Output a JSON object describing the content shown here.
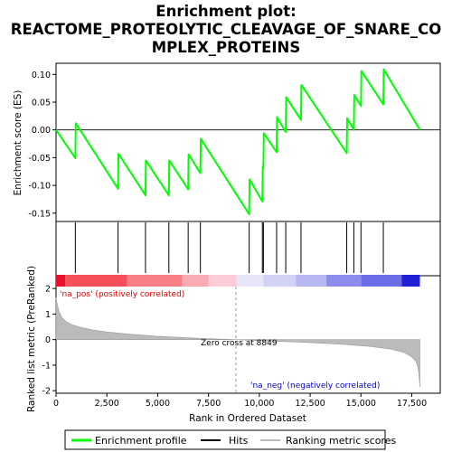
{
  "chart_data": {
    "type": "line",
    "title_lines": [
      "Enrichment plot:",
      "REACTOME_PROTEOLYTIC_CLEAVAGE_OF_SNARE_CO",
      "MPLEX_PROTEINS"
    ],
    "top_panel": {
      "ylabel": "Enrichment score (ES)",
      "ylim": [
        -0.165,
        0.12
      ],
      "yticks": [
        "0.10",
        "0.05",
        "0.00",
        "-0.05",
        "-0.10",
        "-0.15"
      ],
      "ytick_values": [
        0.1,
        0.05,
        0.0,
        -0.05,
        -0.1,
        -0.15
      ],
      "series": [
        {
          "name": "Enrichment profile",
          "color": "#00ff00",
          "x": [
            0,
            950,
            970,
            3050,
            3070,
            4400,
            4420,
            5550,
            5570,
            6500,
            6520,
            7100,
            7120,
            9500,
            9520,
            10150,
            10170,
            10200,
            10220,
            10850,
            10870,
            11300,
            11320,
            12050,
            12070,
            14300,
            14320,
            14650,
            14670,
            15000,
            15020,
            16100,
            16120,
            17900
          ],
          "y": [
            0.0,
            -0.051,
            0.012,
            -0.106,
            -0.043,
            -0.118,
            -0.055,
            -0.118,
            -0.055,
            -0.107,
            -0.044,
            -0.078,
            -0.016,
            -0.152,
            -0.089,
            -0.129,
            -0.066,
            -0.069,
            -0.006,
            -0.04,
            0.023,
            -0.004,
            0.059,
            0.018,
            0.081,
            -0.042,
            0.021,
            0.0,
            0.063,
            0.043,
            0.106,
            0.046,
            0.109,
            0.0
          ]
        }
      ]
    },
    "hits": {
      "name": "Hits",
      "x": [
        950,
        3050,
        4400,
        5550,
        6500,
        7100,
        9500,
        10150,
        10200,
        10850,
        11300,
        12050,
        14300,
        14650,
        15000,
        16100
      ]
    },
    "color_bar": {
      "x_range": [
        0,
        17900
      ],
      "segments": [
        {
          "start": 0,
          "end": 450,
          "color": "#e8102a"
        },
        {
          "start": 450,
          "end": 3500,
          "color": "#f5505a"
        },
        {
          "start": 3500,
          "end": 6200,
          "color": "#f87f86"
        },
        {
          "start": 6200,
          "end": 7500,
          "color": "#faaab2"
        },
        {
          "start": 7500,
          "end": 8849,
          "color": "#fcccd8"
        },
        {
          "start": 8849,
          "end": 10200,
          "color": "#e6e6f8"
        },
        {
          "start": 10200,
          "end": 11800,
          "color": "#d2d2f6"
        },
        {
          "start": 11800,
          "end": 13300,
          "color": "#b7b7f2"
        },
        {
          "start": 13300,
          "end": 15000,
          "color": "#8c8cec"
        },
        {
          "start": 15000,
          "end": 17000,
          "color": "#6c6ce8"
        },
        {
          "start": 17000,
          "end": 17900,
          "color": "#2020d6"
        }
      ]
    },
    "bottom_panel": {
      "ylabel": "Ranked list metric (PreRanked)",
      "ylim": [
        -2.1,
        2.5
      ],
      "yticks": [
        "2",
        "1",
        "0",
        "-1",
        "-2"
      ],
      "ytick_values": [
        2,
        1,
        0,
        -1,
        -2
      ],
      "metric_profile": {
        "name": "Ranking metric scores",
        "x": [
          0,
          50,
          150,
          300,
          500,
          800,
          1200,
          1800,
          2500,
          3500,
          5000,
          6500,
          8000,
          8849,
          10000,
          12000,
          14000,
          15500,
          16500,
          17100,
          17500,
          17700,
          17800,
          17850,
          17900
        ],
        "y": [
          1.65,
          1.4,
          1.1,
          0.85,
          0.7,
          0.58,
          0.48,
          0.38,
          0.3,
          0.22,
          0.13,
          0.07,
          0.02,
          0.0,
          -0.04,
          -0.1,
          -0.18,
          -0.27,
          -0.38,
          -0.5,
          -0.68,
          -0.85,
          -1.05,
          -1.35,
          -1.85
        ]
      },
      "pos_label": "'na_pos' (positively correlated)",
      "neg_label": "'na_neg' (negatively correlated)",
      "zero_cross_label": "Zero cross at 8849",
      "zero_cross": 8849
    },
    "x_axis": {
      "label": "Rank in Ordered Dataset",
      "xlim": [
        0,
        18900
      ],
      "ticks": [
        "0",
        "2,500",
        "5,000",
        "7,500",
        "10,000",
        "12,500",
        "15,000",
        "17,500"
      ],
      "tick_values": [
        0,
        2500,
        5000,
        7500,
        10000,
        12500,
        15000,
        17500
      ]
    },
    "legend": {
      "placement": "bottom",
      "items": [
        {
          "label": "Enrichment profile",
          "color": "#00ff00"
        },
        {
          "label": "Hits",
          "color": "#000000"
        },
        {
          "label": "Ranking metric scores",
          "color": "#bbbbbb"
        }
      ]
    }
  }
}
